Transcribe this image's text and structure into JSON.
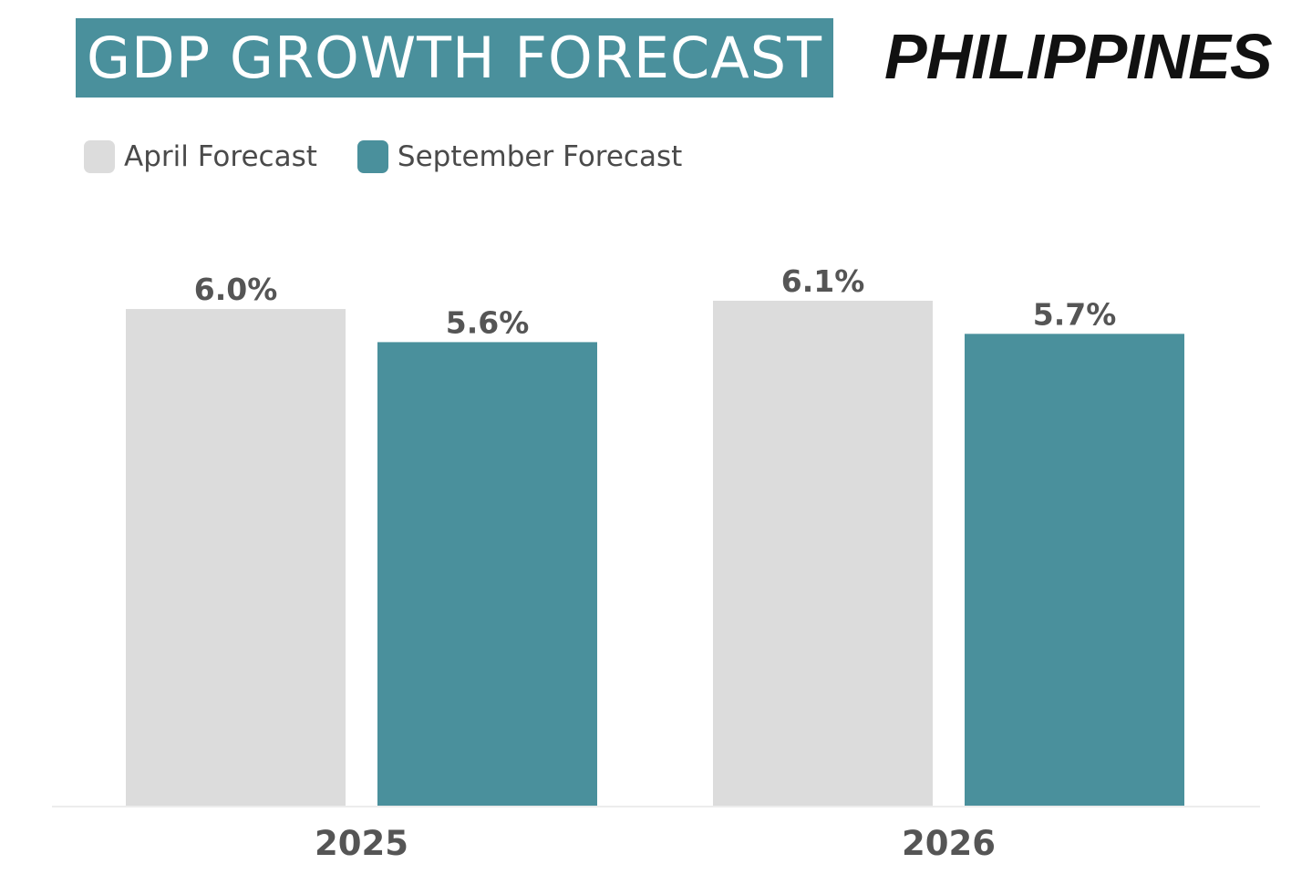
{
  "header": {
    "title": "GDP GROWTH FORECAST",
    "country": "PHILIPPINES"
  },
  "legend": {
    "items": [
      {
        "label": "April Forecast",
        "color": "#dcdcdc"
      },
      {
        "label": "September Forecast",
        "color": "#4a909c"
      }
    ]
  },
  "chart_data": {
    "type": "bar",
    "title": "GDP GROWTH FORECAST",
    "categories": [
      "2025",
      "2026"
    ],
    "series": [
      {
        "name": "April Forecast",
        "values": [
          6.0,
          6.1
        ],
        "labels": [
          "6.0%",
          "6.1%"
        ],
        "color": "#dcdcdc"
      },
      {
        "name": "September Forecast",
        "values": [
          5.6,
          5.7
        ],
        "labels": [
          "5.6%",
          "5.7%"
        ],
        "color": "#4a909c"
      }
    ],
    "ylim": [
      0,
      6.1
    ],
    "grid": false,
    "legend_position": "top-left"
  }
}
